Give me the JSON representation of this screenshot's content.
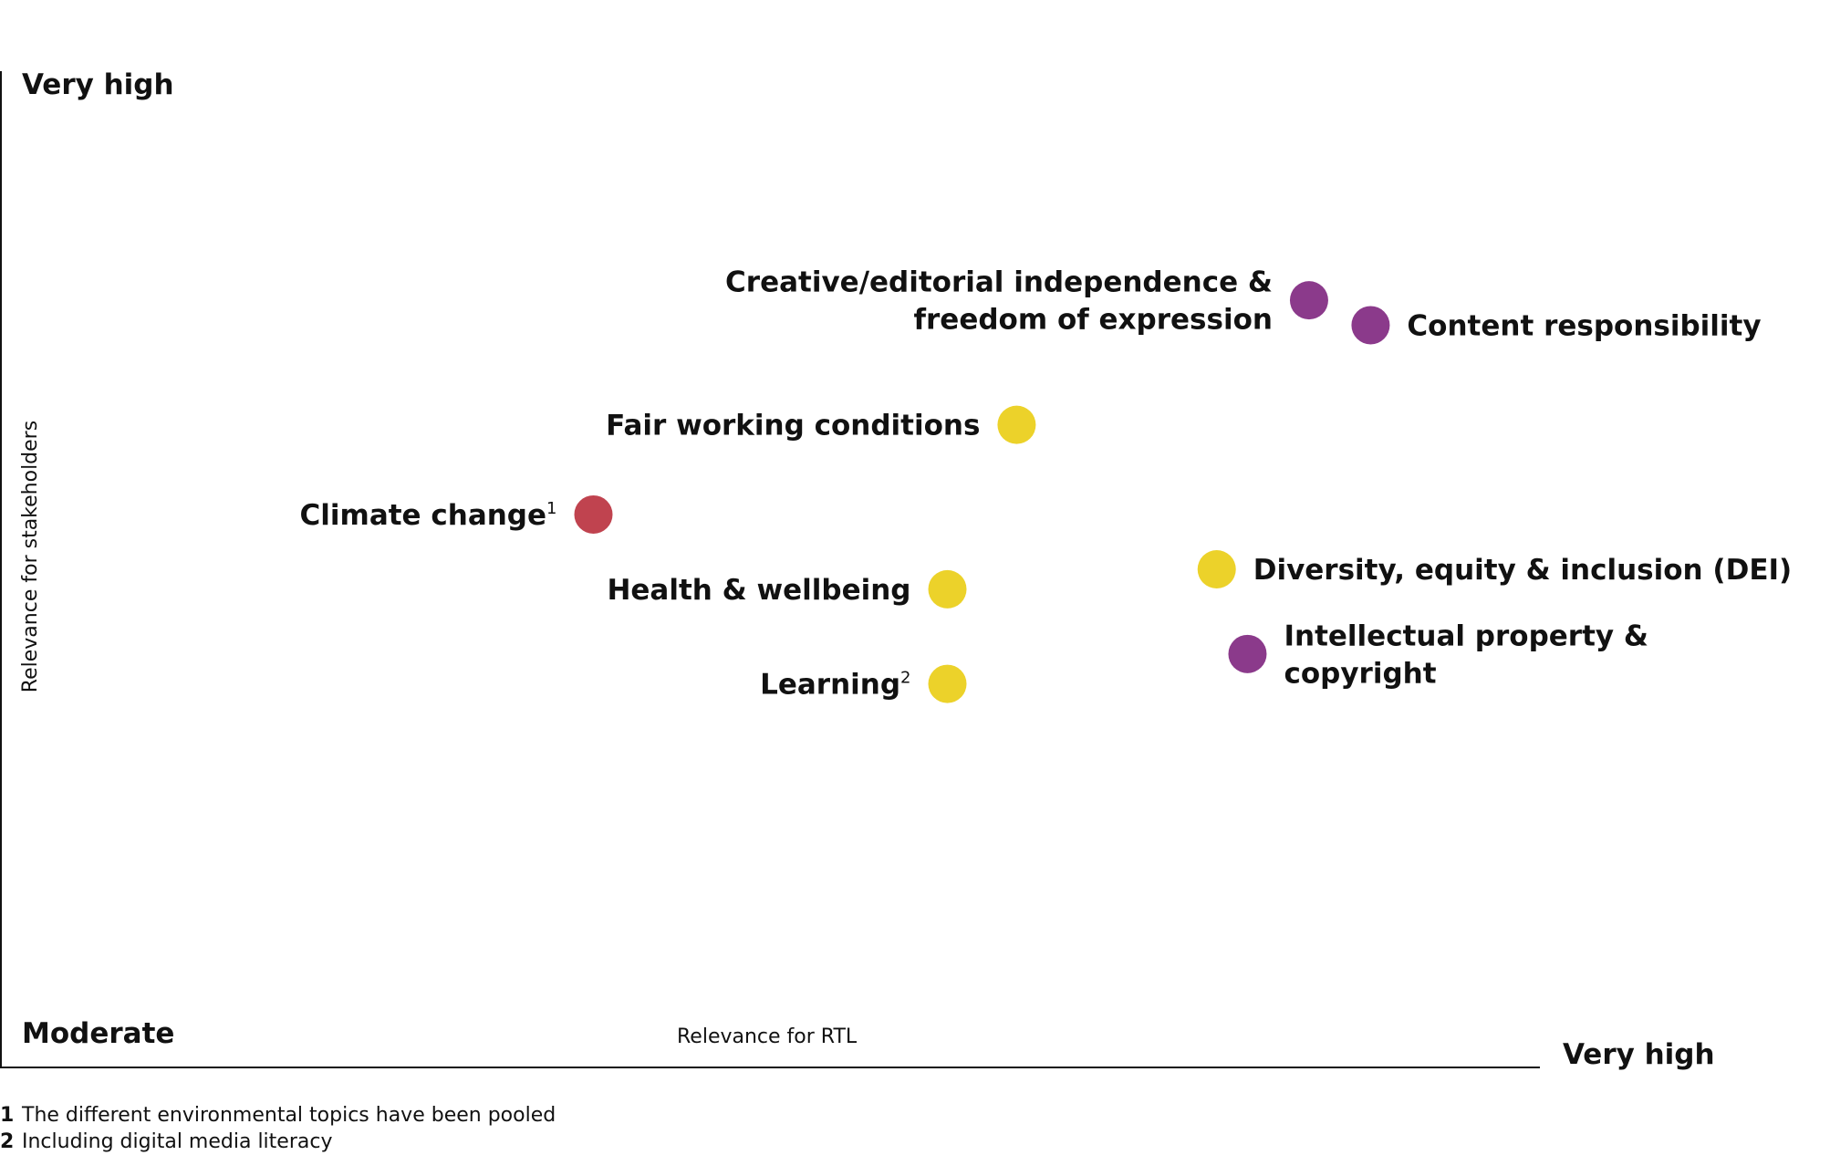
{
  "chart_data": {
    "type": "scatter",
    "title": "",
    "xlabel": "Relevance for RTL",
    "ylabel": "Relevance for stakeholders",
    "x_extremes": {
      "low": "Moderate",
      "high": "Very high"
    },
    "y_extremes": {
      "low": "Moderate",
      "high": "Very high"
    },
    "xlim": [
      0,
      100
    ],
    "ylim": [
      0,
      100
    ],
    "grid": false,
    "legend": "none",
    "colors": {
      "governance": "#8b3a8b",
      "social": "#ecd22a",
      "environment": "#c0434f"
    },
    "points": [
      {
        "label": "Creative/editorial independence & freedom of expression",
        "label_lines": [
          "Creative/editorial independence &",
          "freedom of expression"
        ],
        "sup": "",
        "x": 85,
        "y": 77,
        "color": "#8b3a8b",
        "label_side": "left"
      },
      {
        "label": "Content responsibility",
        "label_lines": [
          "Content responsibility"
        ],
        "sup": "",
        "x": 89,
        "y": 74.5,
        "color": "#8b3a8b",
        "label_side": "right"
      },
      {
        "label": "Fair working conditions",
        "label_lines": [
          "Fair working conditions"
        ],
        "sup": "",
        "x": 66,
        "y": 64.5,
        "color": "#ecd22a",
        "label_side": "left"
      },
      {
        "label": "Climate change",
        "label_lines": [
          "Climate change"
        ],
        "sup": "1",
        "x": 38.5,
        "y": 55.5,
        "color": "#c0434f",
        "label_side": "left"
      },
      {
        "label": "Diversity, equity & inclusion (DEI)",
        "label_lines": [
          "Diversity, equity & inclusion (DEI)"
        ],
        "sup": "",
        "x": 79,
        "y": 50,
        "color": "#ecd22a",
        "label_side": "right"
      },
      {
        "label": "Health & wellbeing",
        "label_lines": [
          "Health & wellbeing"
        ],
        "sup": "",
        "x": 61.5,
        "y": 48,
        "color": "#ecd22a",
        "label_side": "left"
      },
      {
        "label": "Intellectual property & copyright",
        "label_lines": [
          "Intellectual property &",
          "copyright"
        ],
        "sup": "",
        "x": 81,
        "y": 41.5,
        "color": "#8b3a8b",
        "label_side": "right"
      },
      {
        "label": "Learning",
        "label_lines": [
          "Learning"
        ],
        "sup": "2",
        "x": 61.5,
        "y": 38.5,
        "color": "#ecd22a",
        "label_side": "left"
      }
    ]
  },
  "footnotes": [
    {
      "num": "1",
      "text": "The different environmental topics have been pooled"
    },
    {
      "num": "2",
      "text": "Including digital media literacy"
    }
  ]
}
